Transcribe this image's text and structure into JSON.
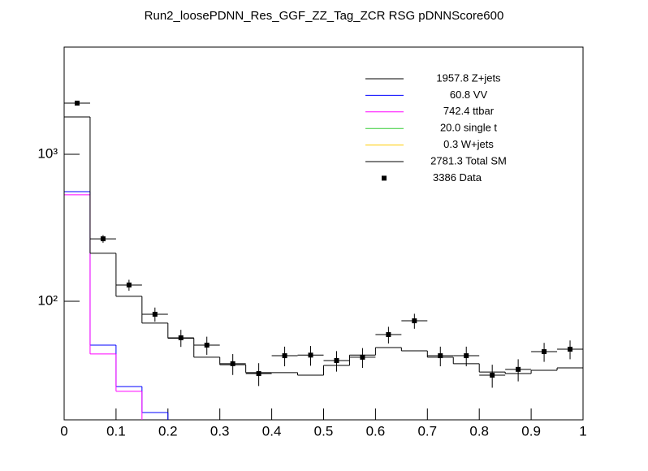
{
  "chart_data": {
    "type": "histogram",
    "title": "Run2_loosePDNN_Res_GGF_ZZ_Tag_ZCR RSG  pDNNScore600",
    "bins": [
      0,
      0.05,
      0.1,
      0.15,
      0.2,
      0.25,
      0.3,
      0.35,
      0.4,
      0.45,
      0.5,
      0.55,
      0.6,
      0.65,
      0.7,
      0.75,
      0.8,
      0.85,
      0.9,
      0.95,
      1
    ],
    "xlim": [
      0,
      1
    ],
    "xticks": [
      0,
      0.1,
      0.2,
      0.3,
      0.4,
      0.5,
      0.6,
      0.7,
      0.8,
      0.9,
      1
    ],
    "ylim": [
      15.6,
      5360
    ],
    "yticks": [
      {
        "value": 100,
        "label": "10²"
      },
      {
        "value": 1000,
        "label": "10³"
      }
    ],
    "log_scale": true,
    "series": [
      {
        "name": "1957.8 Z+jets",
        "color": "#000000",
        "values": [
          null,
          null,
          null,
          null,
          null,
          null,
          null,
          null,
          null,
          null,
          null,
          null,
          null,
          null,
          null,
          null,
          null,
          null,
          null,
          null
        ]
      },
      {
        "name": "60.8 VV",
        "color": "#0000ff",
        "values": [
          557,
          50.3,
          26.3,
          17.5,
          null,
          null,
          null,
          null,
          null,
          null,
          null,
          null,
          null,
          null,
          null,
          null,
          null,
          null,
          null,
          null
        ]
      },
      {
        "name": "742.4 ttbar",
        "color": "#ff00ff",
        "values": [
          530,
          43.8,
          24.4,
          null,
          null,
          null,
          null,
          null,
          null,
          null,
          null,
          null,
          null,
          null,
          null,
          null,
          null,
          null,
          null,
          null
        ]
      },
      {
        "name": "20.0 single t",
        "color": "#33cc33",
        "values": [
          null,
          null,
          null,
          null,
          null,
          null,
          null,
          null,
          null,
          null,
          null,
          null,
          null,
          null,
          null,
          null,
          null,
          null,
          null,
          null
        ]
      },
      {
        "name": "0.3 W+jets",
        "color": "#ffcc00",
        "values": [
          null,
          null,
          null,
          null,
          null,
          null,
          null,
          null,
          null,
          null,
          null,
          null,
          null,
          null,
          null,
          null,
          null,
          null,
          null,
          null
        ]
      },
      {
        "name": "2781.3 Total SM",
        "color": "#000000",
        "values": [
          1794,
          212,
          108,
          71,
          56,
          41.6,
          37,
          32.7,
          32.7,
          31.4,
          36.6,
          43,
          48.4,
          46,
          41.6,
          37.6,
          33,
          32.2,
          33.9,
          35.2
        ]
      }
    ],
    "data": {
      "name": "3386 Data",
      "color": "#000000",
      "values": [
        2229,
        266,
        129,
        81.6,
        56.4,
        50.3,
        37.6,
        32.2,
        42.6,
        43,
        39.5,
        41.6,
        59.3,
        73.6,
        42.6,
        42.6,
        31.4,
        34.4,
        45.4,
        47.2
      ],
      "errors": [
        47,
        16,
        11,
        9,
        7.5,
        7.1,
        6.1,
        5.7,
        6.5,
        6.6,
        6.3,
        6.4,
        7.7,
        8.6,
        6.5,
        6.5,
        5.6,
        5.9,
        6.7,
        6.9
      ]
    }
  }
}
